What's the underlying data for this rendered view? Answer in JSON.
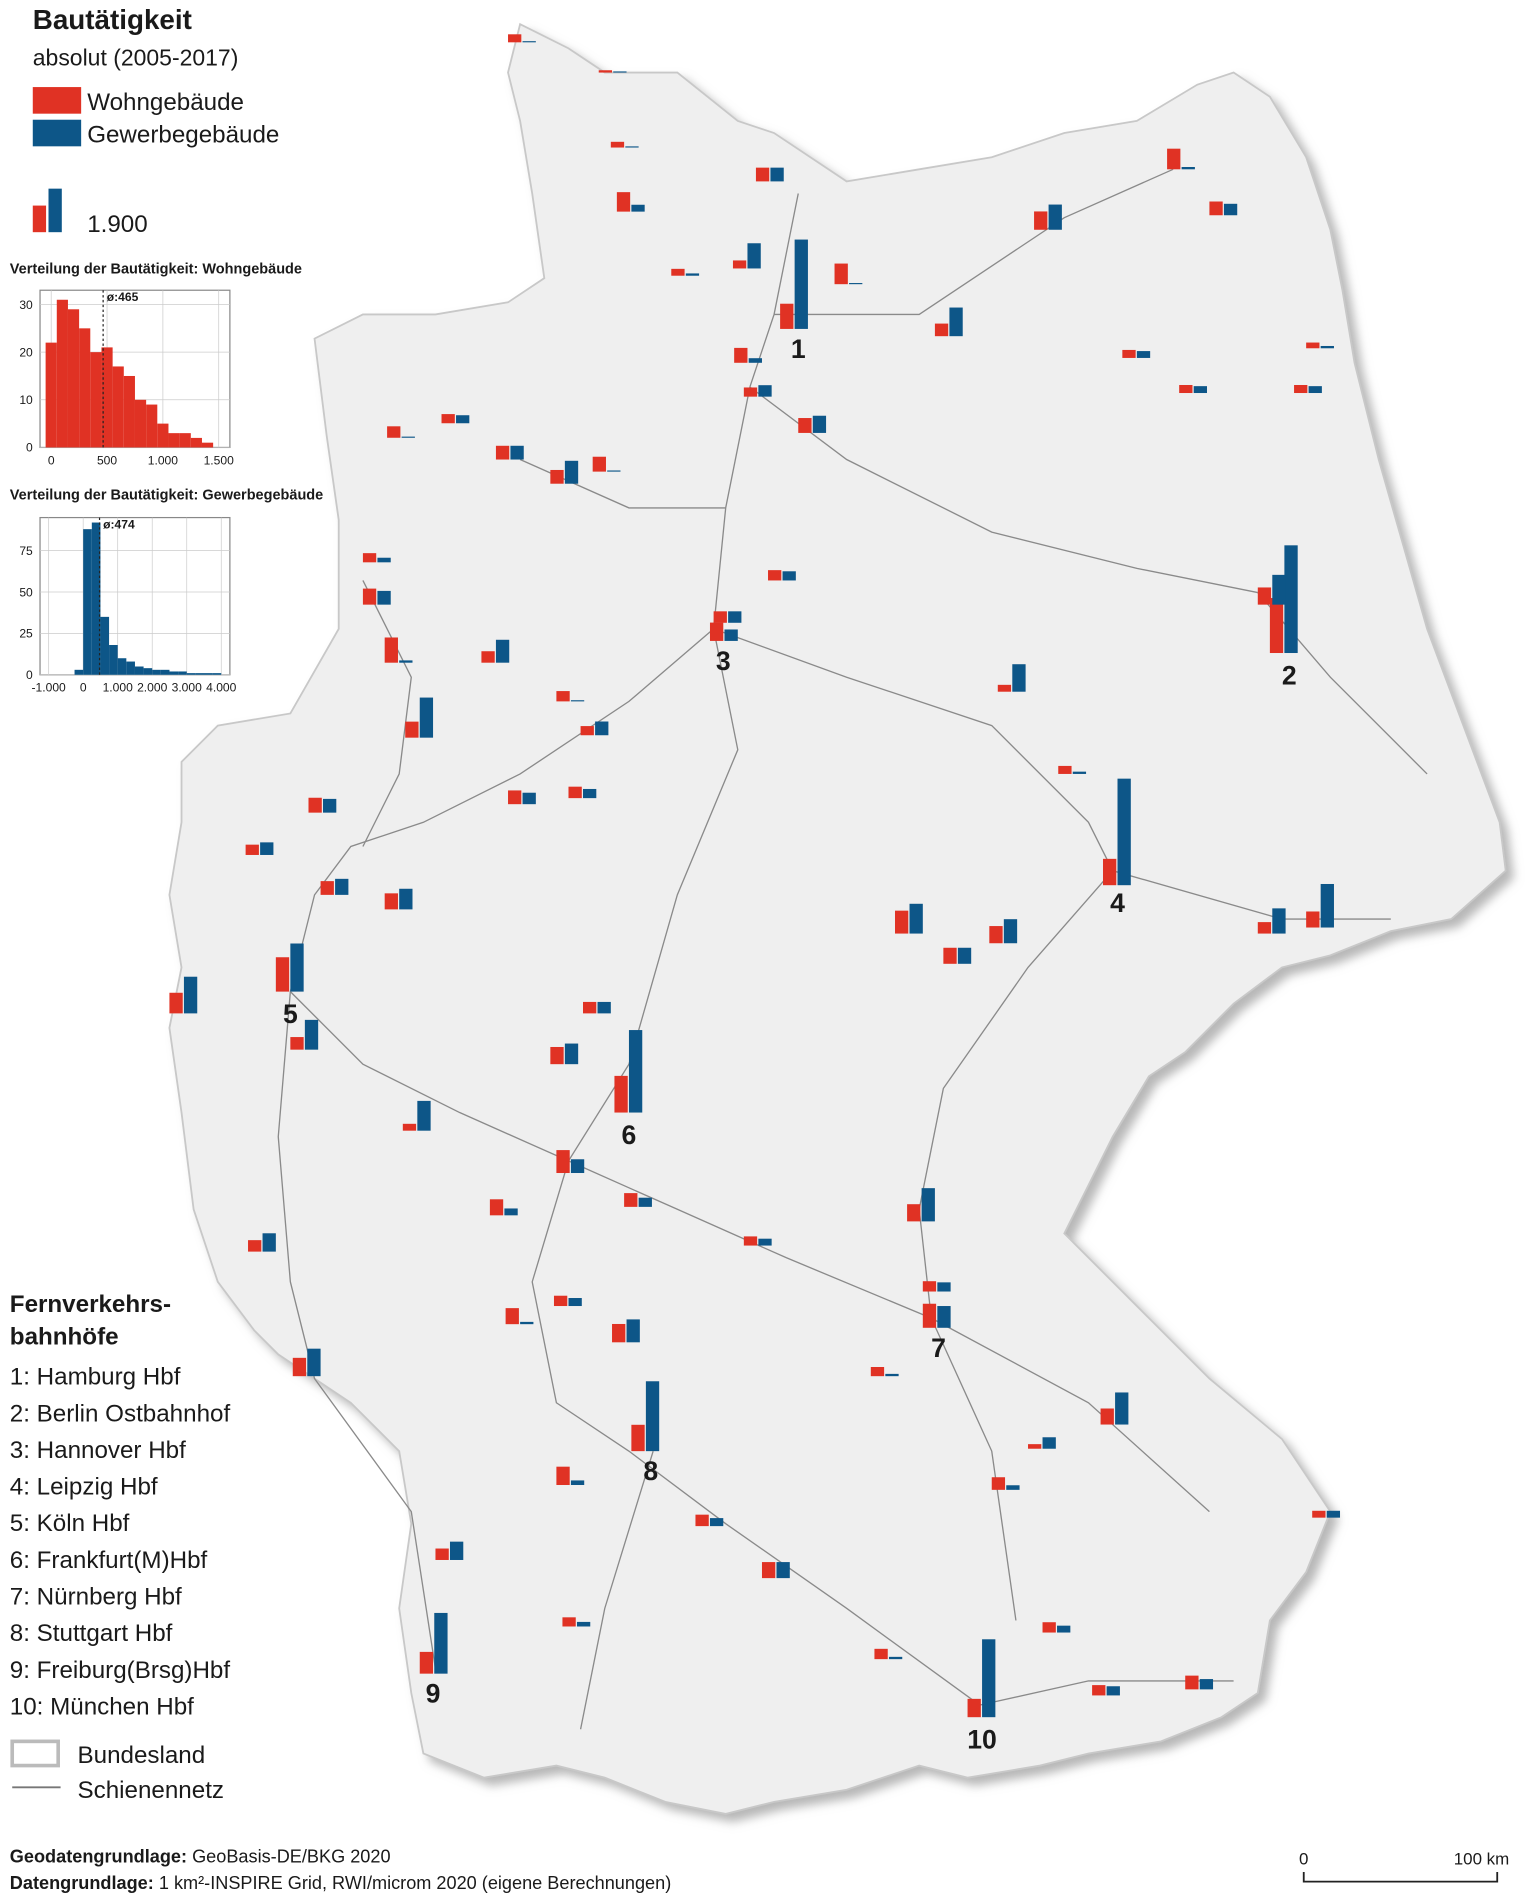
{
  "title": "Bautätigkeit",
  "subtitle": "absolut (2005-2017)",
  "legend": {
    "series": [
      {
        "name": "Wohngebäude",
        "color": "#e03224"
      },
      {
        "name": "Gewerbegebäude",
        "color": "#0d5688"
      }
    ],
    "scale_value": {
      "value": 1900,
      "label": "1.900"
    }
  },
  "histograms": [
    {
      "type": "histogram",
      "title": "Verteilung der Bautätigkeit: Wohngebäude",
      "color": "#e03224",
      "bins": [
        -50,
        50,
        150,
        250,
        350,
        450,
        550,
        650,
        750,
        850,
        950,
        1050,
        1150,
        1250,
        1350,
        1450
      ],
      "counts": [
        22,
        31,
        29,
        25,
        20,
        21,
        17,
        15,
        10,
        9,
        5,
        3,
        3,
        2,
        1
      ],
      "xlim": [
        -100,
        1600
      ],
      "ylim": [
        0,
        33
      ],
      "xticks": [
        0,
        500,
        {
          "value": 1000,
          "label": "1.000"
        },
        {
          "value": 1500,
          "label": "1.500"
        }
      ],
      "yticks": [
        0,
        10,
        20,
        30
      ],
      "grid": true,
      "mean": {
        "value": 465,
        "label": "ø:465"
      }
    },
    {
      "type": "histogram",
      "title": "Verteilung der Bautätigkeit: Gewerbegebäude",
      "color": "#0d5688",
      "bins": [
        -250,
        0,
        250,
        500,
        750,
        1000,
        1250,
        1500,
        1750,
        2000,
        2250,
        2500,
        2750,
        3000,
        3250,
        3500,
        3750,
        4000
      ],
      "counts": [
        3,
        88,
        92,
        35,
        18,
        10,
        8,
        5,
        4,
        3,
        3,
        2,
        2,
        1,
        1,
        1,
        1
      ],
      "xlim": [
        -1250,
        4250
      ],
      "ylim": [
        0,
        95
      ],
      "xticks": [
        {
          "value": -1000,
          "label": "-1.000"
        },
        0,
        {
          "value": 1000,
          "label": "1.000"
        },
        {
          "value": 2000,
          "label": "2.000"
        },
        {
          "value": 3000,
          "label": "3.000"
        },
        {
          "value": 4000,
          "label": "4.000"
        }
      ],
      "yticks": [
        0,
        25,
        50,
        75
      ],
      "grid": true,
      "mean": {
        "value": 474,
        "label": "ø:474"
      }
    }
  ],
  "stations_title": [
    "Fernverkehrs-",
    "bahnhöfe"
  ],
  "stations": [
    {
      "id": "1",
      "label": "1: Hamburg Hbf",
      "values": [
        1100,
        3900
      ]
    },
    {
      "id": "2",
      "label": "2: Berlin Ostbahnhof",
      "values": [
        2400,
        4700
      ]
    },
    {
      "id": "3",
      "label": "3: Hannover Hbf",
      "values": [
        800,
        500
      ]
    },
    {
      "id": "4",
      "label": "4: Leipzig Hbf",
      "values": [
        1150,
        4650
      ]
    },
    {
      "id": "5",
      "label": "5: Köln Hbf",
      "values": [
        1500,
        2100
      ]
    },
    {
      "id": "6",
      "label": "6: Frankfurt(M)Hbf",
      "values": [
        1600,
        3600
      ]
    },
    {
      "id": "7",
      "label": "7: Nürnberg Hbf",
      "values": [
        1050,
        950
      ]
    },
    {
      "id": "8",
      "label": "8: Stuttgart Hbf",
      "values": [
        1150,
        3050
      ]
    },
    {
      "id": "9",
      "label": "9: Freiburg(Brsg)Hbf",
      "values": [
        950,
        2650
      ]
    },
    {
      "id": "10",
      "label": "10: München Hbf",
      "values": [
        800,
        3400
      ]
    }
  ],
  "other_bars": [
    [
      350,
      50
    ],
    [
      100,
      50
    ],
    [
      250,
      50
    ],
    [
      850,
      300
    ],
    [
      300,
      100
    ],
    [
      600,
      600
    ],
    [
      350,
      1100
    ],
    [
      900,
      50
    ],
    [
      550,
      1250
    ],
    [
      800,
      1100
    ],
    [
      900,
      100
    ],
    [
      600,
      500
    ],
    [
      350,
      300
    ],
    [
      350,
      300
    ],
    [
      250,
      100
    ],
    [
      350,
      300
    ],
    [
      650,
      200
    ],
    [
      400,
      500
    ],
    [
      650,
      750
    ],
    [
      650,
      50
    ],
    [
      600,
      1000
    ],
    [
      600,
      600
    ],
    [
      500,
      50
    ],
    [
      400,
      350
    ],
    [
      400,
      200
    ],
    [
      700,
      600
    ],
    [
      1100,
      100
    ],
    [
      500,
      1000
    ],
    [
      700,
      1750
    ],
    [
      450,
      50
    ],
    [
      400,
      600
    ],
    [
      600,
      500
    ],
    [
      500,
      400
    ],
    [
      500,
      500
    ],
    [
      450,
      400
    ],
    [
      300,
      1200
    ],
    [
      350,
      100
    ],
    [
      1000,
      1300
    ],
    [
      700,
      700
    ],
    [
      750,
      1050
    ],
    [
      500,
      1100
    ],
    [
      700,
      1900
    ],
    [
      750,
      1300
    ],
    [
      650,
      600
    ],
    [
      450,
      550
    ],
    [
      600,
      700
    ],
    [
      700,
      900
    ],
    [
      900,
      1600
    ],
    [
      550,
      1300
    ],
    [
      750,
      900
    ],
    [
      500,
      500
    ],
    [
      1000,
      600
    ],
    [
      600,
      400
    ],
    [
      700,
      300
    ],
    [
      300,
      1300
    ],
    [
      500,
      800
    ],
    [
      800,
      1200
    ],
    [
      700,
      100
    ],
    [
      800,
      1000
    ],
    [
      450,
      350
    ],
    [
      750,
      1450
    ],
    [
      400,
      300
    ],
    [
      450,
      400
    ],
    [
      700,
      1400
    ],
    [
      200,
      500
    ],
    [
      800,
      200
    ],
    [
      500,
      350
    ],
    [
      700,
      700
    ],
    [
      400,
      100
    ],
    [
      550,
      200
    ],
    [
      450,
      300
    ],
    [
      450,
      400
    ],
    [
      600,
      450
    ],
    [
      300,
      300
    ],
    [
      500,
      800
    ],
    [
      400,
      200
    ],
    [
      450,
      100
    ]
  ],
  "map_legend": [
    "Bundesland",
    "Schienennetz"
  ],
  "scale_bar": [
    "0",
    "100 km"
  ],
  "footer": [
    {
      "label": "Geodatengrundlage:",
      "text": "GeoBasis-DE/BKG 2020"
    },
    {
      "label": "Datengrundlage:",
      "text": "1 km²-INSPIRE Grid, RWI/microm 2020 (eigene Berechnungen)"
    }
  ]
}
